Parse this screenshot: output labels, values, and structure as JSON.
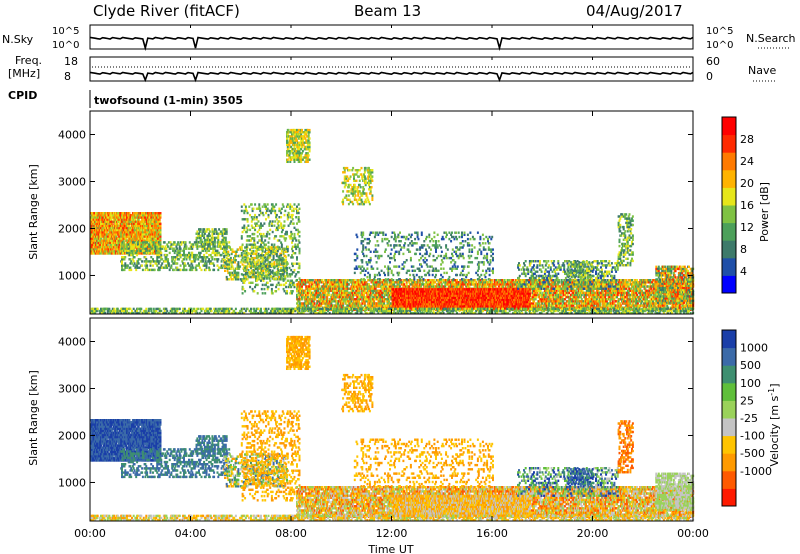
{
  "header": {
    "station": "Clyde River (fitACF)",
    "beam": "Beam 13",
    "date": "04/Aug/2017"
  },
  "panels": {
    "nsky": {
      "label": "N.Sky",
      "left_ticks": [
        "10^5",
        "10^0"
      ],
      "right_ticks": [
        "10^5",
        "10^0"
      ],
      "right_label": "N.Search"
    },
    "freq": {
      "label_line1": "Freq.",
      "label_line2": "[MHz]",
      "left_ticks": [
        "18",
        "8"
      ],
      "right_ticks": [
        "60",
        "0"
      ],
      "right_label": "Nave"
    },
    "cpid": {
      "label": "CPID",
      "program": "twofsound (1-min) 3505"
    }
  },
  "colors": {
    "power": [
      "#0000ff",
      "#1f4fa8",
      "#3d7a6a",
      "#4ca05a",
      "#7fc243",
      "#e6e61a",
      "#ffb300",
      "#ff7a00",
      "#ff2a00",
      "#ff0000"
    ],
    "velocity": [
      "#1a3ea8",
      "#3b6aa8",
      "#3e8f70",
      "#5fbf3a",
      "#9ad25a",
      "#c4c4c4",
      "#ffc400",
      "#ff9a00",
      "#ff5a00",
      "#ff1a00"
    ]
  },
  "chart_data": [
    {
      "type": "heatmap",
      "name": "power",
      "xlabel": "",
      "ylabel": "Slant Range [km]",
      "ylim": [
        180,
        4500
      ],
      "yticks": [
        "1000",
        "2000",
        "3000",
        "4000"
      ],
      "colorbar_label": "Power [dB]",
      "colorbar_ticks": [
        "4",
        "8",
        "12",
        "16",
        "20",
        "24",
        "28"
      ],
      "colorbar_range": [
        0,
        32
      ]
    },
    {
      "type": "heatmap",
      "name": "velocity",
      "xlabel": "Time UT",
      "ylabel": "Slant Range [km]",
      "ylim": [
        180,
        4500
      ],
      "yticks": [
        "1000",
        "2000",
        "3000",
        "4000"
      ],
      "xticks": [
        "00:00",
        "04:00",
        "08:00",
        "12:00",
        "16:00",
        "20:00",
        "00:00"
      ],
      "colorbar_label": "Velocity [m s",
      "colorbar_label_sup": "-1",
      "colorbar_label_end": "]",
      "colorbar_ticks": [
        "1000",
        "500",
        "100",
        "25",
        "-25",
        "-100",
        "-500",
        "-1000"
      ]
    }
  ]
}
